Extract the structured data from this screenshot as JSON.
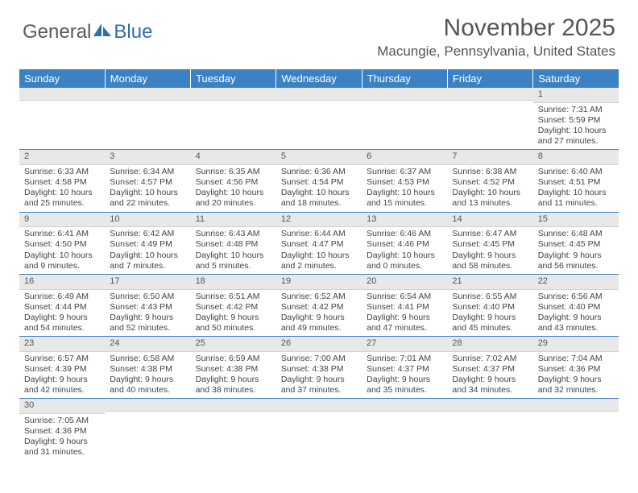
{
  "logo": {
    "general": "General",
    "blue": "Blue"
  },
  "header": {
    "month_title": "November 2025",
    "location": "Macungie, Pennsylvania, United States"
  },
  "columns": [
    "Sunday",
    "Monday",
    "Tuesday",
    "Wednesday",
    "Thursday",
    "Friday",
    "Saturday"
  ],
  "colors": {
    "header_bg": "#3b82c4",
    "header_text": "#ffffff",
    "daynum_bg": "#e8e8e8",
    "cell_border": "#3b82c4",
    "logo_accent": "#2f6fa8"
  },
  "weeks": [
    [
      {
        "n": "",
        "sunrise": "",
        "sunset": "",
        "daylight": ""
      },
      {
        "n": "",
        "sunrise": "",
        "sunset": "",
        "daylight": ""
      },
      {
        "n": "",
        "sunrise": "",
        "sunset": "",
        "daylight": ""
      },
      {
        "n": "",
        "sunrise": "",
        "sunset": "",
        "daylight": ""
      },
      {
        "n": "",
        "sunrise": "",
        "sunset": "",
        "daylight": ""
      },
      {
        "n": "",
        "sunrise": "",
        "sunset": "",
        "daylight": ""
      },
      {
        "n": "1",
        "sunrise": "Sunrise: 7:31 AM",
        "sunset": "Sunset: 5:59 PM",
        "daylight": "Daylight: 10 hours and 27 minutes."
      }
    ],
    [
      {
        "n": "2",
        "sunrise": "Sunrise: 6:33 AM",
        "sunset": "Sunset: 4:58 PM",
        "daylight": "Daylight: 10 hours and 25 minutes."
      },
      {
        "n": "3",
        "sunrise": "Sunrise: 6:34 AM",
        "sunset": "Sunset: 4:57 PM",
        "daylight": "Daylight: 10 hours and 22 minutes."
      },
      {
        "n": "4",
        "sunrise": "Sunrise: 6:35 AM",
        "sunset": "Sunset: 4:56 PM",
        "daylight": "Daylight: 10 hours and 20 minutes."
      },
      {
        "n": "5",
        "sunrise": "Sunrise: 6:36 AM",
        "sunset": "Sunset: 4:54 PM",
        "daylight": "Daylight: 10 hours and 18 minutes."
      },
      {
        "n": "6",
        "sunrise": "Sunrise: 6:37 AM",
        "sunset": "Sunset: 4:53 PM",
        "daylight": "Daylight: 10 hours and 15 minutes."
      },
      {
        "n": "7",
        "sunrise": "Sunrise: 6:38 AM",
        "sunset": "Sunset: 4:52 PM",
        "daylight": "Daylight: 10 hours and 13 minutes."
      },
      {
        "n": "8",
        "sunrise": "Sunrise: 6:40 AM",
        "sunset": "Sunset: 4:51 PM",
        "daylight": "Daylight: 10 hours and 11 minutes."
      }
    ],
    [
      {
        "n": "9",
        "sunrise": "Sunrise: 6:41 AM",
        "sunset": "Sunset: 4:50 PM",
        "daylight": "Daylight: 10 hours and 9 minutes."
      },
      {
        "n": "10",
        "sunrise": "Sunrise: 6:42 AM",
        "sunset": "Sunset: 4:49 PM",
        "daylight": "Daylight: 10 hours and 7 minutes."
      },
      {
        "n": "11",
        "sunrise": "Sunrise: 6:43 AM",
        "sunset": "Sunset: 4:48 PM",
        "daylight": "Daylight: 10 hours and 5 minutes."
      },
      {
        "n": "12",
        "sunrise": "Sunrise: 6:44 AM",
        "sunset": "Sunset: 4:47 PM",
        "daylight": "Daylight: 10 hours and 2 minutes."
      },
      {
        "n": "13",
        "sunrise": "Sunrise: 6:46 AM",
        "sunset": "Sunset: 4:46 PM",
        "daylight": "Daylight: 10 hours and 0 minutes."
      },
      {
        "n": "14",
        "sunrise": "Sunrise: 6:47 AM",
        "sunset": "Sunset: 4:45 PM",
        "daylight": "Daylight: 9 hours and 58 minutes."
      },
      {
        "n": "15",
        "sunrise": "Sunrise: 6:48 AM",
        "sunset": "Sunset: 4:45 PM",
        "daylight": "Daylight: 9 hours and 56 minutes."
      }
    ],
    [
      {
        "n": "16",
        "sunrise": "Sunrise: 6:49 AM",
        "sunset": "Sunset: 4:44 PM",
        "daylight": "Daylight: 9 hours and 54 minutes."
      },
      {
        "n": "17",
        "sunrise": "Sunrise: 6:50 AM",
        "sunset": "Sunset: 4:43 PM",
        "daylight": "Daylight: 9 hours and 52 minutes."
      },
      {
        "n": "18",
        "sunrise": "Sunrise: 6:51 AM",
        "sunset": "Sunset: 4:42 PM",
        "daylight": "Daylight: 9 hours and 50 minutes."
      },
      {
        "n": "19",
        "sunrise": "Sunrise: 6:52 AM",
        "sunset": "Sunset: 4:42 PM",
        "daylight": "Daylight: 9 hours and 49 minutes."
      },
      {
        "n": "20",
        "sunrise": "Sunrise: 6:54 AM",
        "sunset": "Sunset: 4:41 PM",
        "daylight": "Daylight: 9 hours and 47 minutes."
      },
      {
        "n": "21",
        "sunrise": "Sunrise: 6:55 AM",
        "sunset": "Sunset: 4:40 PM",
        "daylight": "Daylight: 9 hours and 45 minutes."
      },
      {
        "n": "22",
        "sunrise": "Sunrise: 6:56 AM",
        "sunset": "Sunset: 4:40 PM",
        "daylight": "Daylight: 9 hours and 43 minutes."
      }
    ],
    [
      {
        "n": "23",
        "sunrise": "Sunrise: 6:57 AM",
        "sunset": "Sunset: 4:39 PM",
        "daylight": "Daylight: 9 hours and 42 minutes."
      },
      {
        "n": "24",
        "sunrise": "Sunrise: 6:58 AM",
        "sunset": "Sunset: 4:38 PM",
        "daylight": "Daylight: 9 hours and 40 minutes."
      },
      {
        "n": "25",
        "sunrise": "Sunrise: 6:59 AM",
        "sunset": "Sunset: 4:38 PM",
        "daylight": "Daylight: 9 hours and 38 minutes."
      },
      {
        "n": "26",
        "sunrise": "Sunrise: 7:00 AM",
        "sunset": "Sunset: 4:38 PM",
        "daylight": "Daylight: 9 hours and 37 minutes."
      },
      {
        "n": "27",
        "sunrise": "Sunrise: 7:01 AM",
        "sunset": "Sunset: 4:37 PM",
        "daylight": "Daylight: 9 hours and 35 minutes."
      },
      {
        "n": "28",
        "sunrise": "Sunrise: 7:02 AM",
        "sunset": "Sunset: 4:37 PM",
        "daylight": "Daylight: 9 hours and 34 minutes."
      },
      {
        "n": "29",
        "sunrise": "Sunrise: 7:04 AM",
        "sunset": "Sunset: 4:36 PM",
        "daylight": "Daylight: 9 hours and 32 minutes."
      }
    ],
    [
      {
        "n": "30",
        "sunrise": "Sunrise: 7:05 AM",
        "sunset": "Sunset: 4:36 PM",
        "daylight": "Daylight: 9 hours and 31 minutes."
      },
      {
        "n": "",
        "sunrise": "",
        "sunset": "",
        "daylight": ""
      },
      {
        "n": "",
        "sunrise": "",
        "sunset": "",
        "daylight": ""
      },
      {
        "n": "",
        "sunrise": "",
        "sunset": "",
        "daylight": ""
      },
      {
        "n": "",
        "sunrise": "",
        "sunset": "",
        "daylight": ""
      },
      {
        "n": "",
        "sunrise": "",
        "sunset": "",
        "daylight": ""
      },
      {
        "n": "",
        "sunrise": "",
        "sunset": "",
        "daylight": ""
      }
    ]
  ]
}
